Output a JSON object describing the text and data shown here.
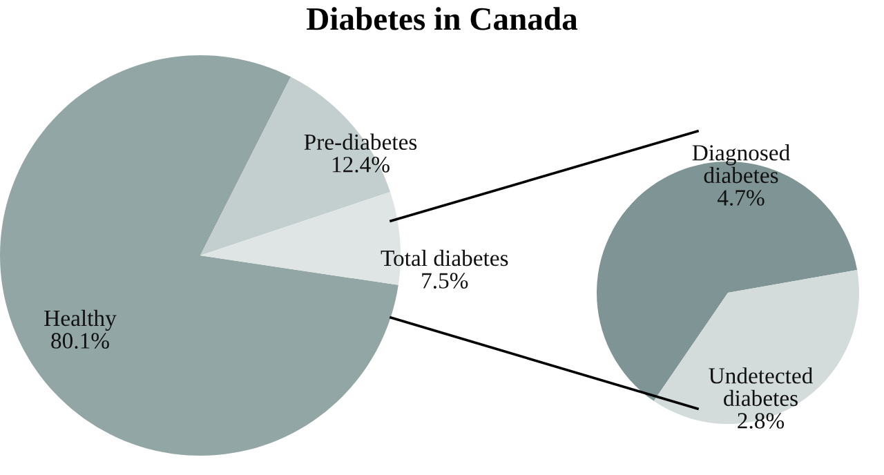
{
  "chart_data": [
    {
      "type": "pie",
      "title": "Diabetes in Canada",
      "categories": [
        "Healthy",
        "Pre-diabetes",
        "Total diabetes"
      ],
      "values": [
        80.1,
        12.4,
        7.5
      ],
      "colors": [
        "#93a6a6",
        "#c3cece",
        "#dfe5e5"
      ],
      "value_labels": [
        "80.1%",
        "12.4%",
        "7.5%"
      ]
    },
    {
      "type": "pie",
      "categories": [
        "Diagnosed diabetes",
        "Undetected diabetes"
      ],
      "values": [
        4.7,
        2.8
      ],
      "colors": [
        "#7f9494",
        "#d3dbdb"
      ],
      "value_labels": [
        "4.7%",
        "2.8%"
      ]
    }
  ]
}
